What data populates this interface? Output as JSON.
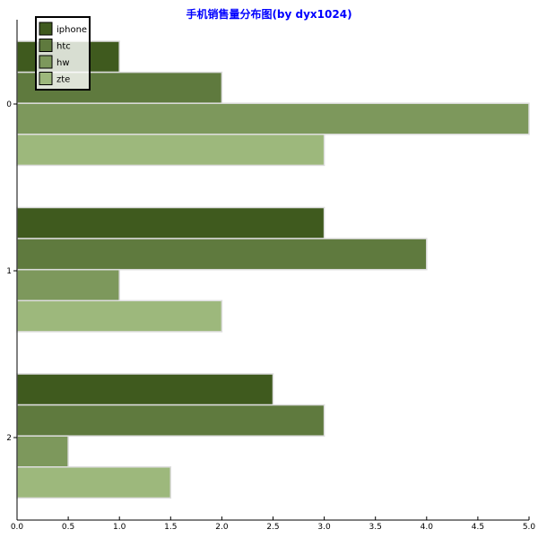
{
  "chart_data": {
    "type": "bar",
    "orientation": "horizontal",
    "title": "手机销售量分布图(by dyx1024)",
    "categories": [
      "0",
      "1",
      "2"
    ],
    "series": [
      {
        "name": "iphone",
        "values": [
          1,
          3,
          2.5
        ],
        "color": "#3f5a1e"
      },
      {
        "name": "htc",
        "values": [
          2,
          4,
          3
        ],
        "color": "#5f7a3e"
      },
      {
        "name": "hw",
        "values": [
          5,
          1,
          0.5
        ],
        "color": "#7d985c"
      },
      {
        "name": "zte",
        "values": [
          3,
          2,
          1.5
        ],
        "color": "#9db87c"
      }
    ],
    "xlim": [
      0,
      5
    ],
    "xticks": [
      "0.0",
      "0.5",
      "1.0",
      "1.5",
      "2.0",
      "2.5",
      "3.0",
      "3.5",
      "4.0",
      "4.5",
      "5.0"
    ],
    "grid": false,
    "legend_position": "top-left",
    "title_color": "#0000ff"
  }
}
